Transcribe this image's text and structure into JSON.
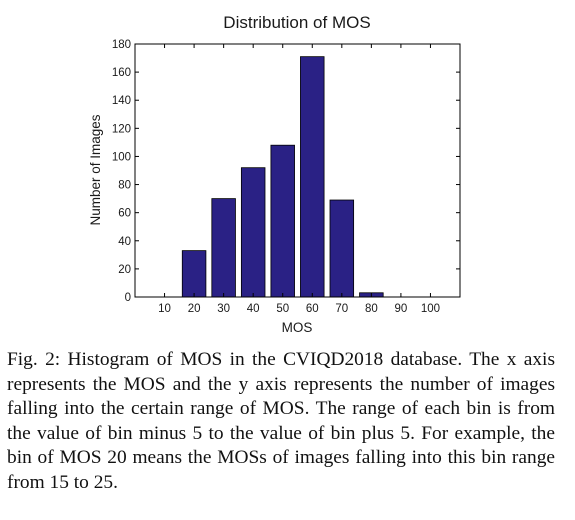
{
  "chart_data": {
    "type": "bar",
    "title": "Distribution of MOS",
    "xlabel": "MOS",
    "ylabel": "Number of Images",
    "categories": [
      20,
      30,
      40,
      50,
      60,
      70,
      80
    ],
    "values": [
      33,
      70,
      92,
      108,
      171,
      69,
      3
    ],
    "xlim": [
      0,
      110
    ],
    "ylim": [
      0,
      180
    ],
    "xticks": [
      10,
      20,
      30,
      40,
      50,
      60,
      70,
      80,
      90,
      100
    ],
    "yticks": [
      0,
      20,
      40,
      60,
      80,
      100,
      120,
      140,
      160,
      180
    ],
    "bar_color": "#2a2185",
    "grid": false
  },
  "caption": "Fig. 2: Histogram of MOS in the CVIQD2018 database. The x axis represents the MOS and the y axis represents the number of images falling into the certain range of MOS. The range of each bin is from the value of bin minus 5 to the value of bin plus 5. For example, the bin of MOS 20 means the MOSs of images falling into this bin range from 15 to 25."
}
